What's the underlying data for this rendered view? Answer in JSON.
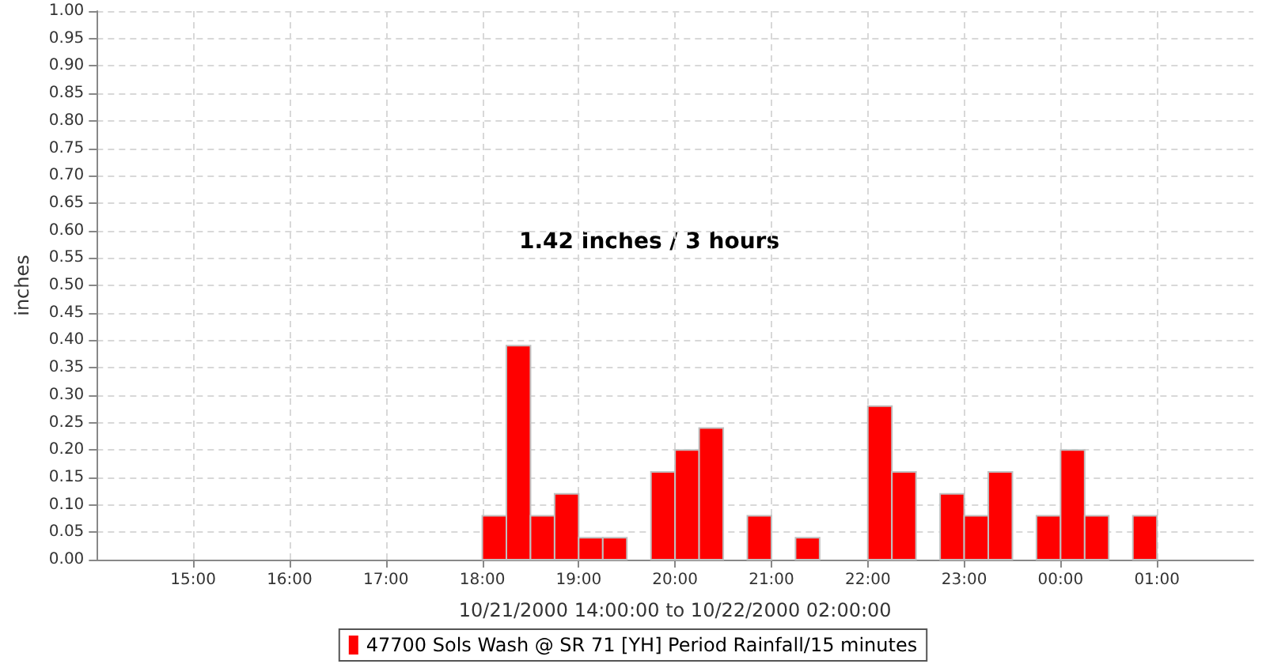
{
  "chart_data": {
    "type": "histogram",
    "xlabel": "10/21/2000 14:00:00 to 10/22/2000 02:00:00",
    "ylabel": "inches",
    "annotations": [
      "1.42 inches / 3 hours"
    ],
    "bins": [
      "2000-10-21T18:00",
      "2000-10-21T18:15",
      "2000-10-21T18:30",
      "2000-10-21T18:45",
      "2000-10-21T19:00",
      "2000-10-21T19:15",
      "2000-10-21T19:30",
      "2000-10-21T19:45",
      "2000-10-21T20:00",
      "2000-10-21T20:15",
      "2000-10-21T20:30",
      "2000-10-21T20:45",
      "2000-10-21T21:00",
      "2000-10-21T21:15",
      "2000-10-21T21:30",
      "2000-10-21T21:45",
      "2000-10-21T22:00",
      "2000-10-21T22:15",
      "2000-10-21T22:30",
      "2000-10-21T22:45",
      "2000-10-21T23:00",
      "2000-10-21T23:15",
      "2000-10-21T23:30",
      "2000-10-21T23:45",
      "2000-10-22T00:00",
      "2000-10-22T00:15",
      "2000-10-22T00:30",
      "2000-10-22T00:45",
      "2000-10-22T01:00"
    ],
    "series": [
      {
        "name": "47700 Sols Wash @ SR 71 [YH] Period Rainfall/15 minutes",
        "color": "#ff0000",
        "values": [
          0.08,
          0.39,
          0.08,
          0.12,
          0.04,
          0.04,
          0,
          0.16,
          0.2,
          0.24,
          0,
          0.08,
          0,
          0.04,
          0,
          0,
          0.28,
          0.16,
          0,
          0.12,
          0.08,
          0.16,
          0,
          0.08,
          0.2,
          0.08,
          0,
          0.08
        ]
      }
    ],
    "xlim": [
      "2000-10-21T14:00",
      "2000-10-22T02:00"
    ],
    "xticks": [
      {
        "value": "2000-10-21T15:00",
        "label": "15:00"
      },
      {
        "value": "2000-10-21T16:00",
        "label": "16:00"
      },
      {
        "value": "2000-10-21T17:00",
        "label": "17:00"
      },
      {
        "value": "2000-10-21T18:00",
        "label": "18:00"
      },
      {
        "value": "2000-10-21T19:00",
        "label": "19:00"
      },
      {
        "value": "2000-10-21T20:00",
        "label": "20:00"
      },
      {
        "value": "2000-10-21T21:00",
        "label": "21:00"
      },
      {
        "value": "2000-10-21T22:00",
        "label": "22:00"
      },
      {
        "value": "2000-10-21T23:00",
        "label": "23:00"
      },
      {
        "value": "2000-10-22T00:00",
        "label": "00:00"
      },
      {
        "value": "2000-10-22T01:00",
        "label": "01:00"
      }
    ],
    "ylim": [
      0,
      1
    ],
    "yticks": [
      {
        "value": 0,
        "label": "0.00"
      },
      {
        "value": 0.05,
        "label": "0.05"
      },
      {
        "value": 0.1,
        "label": "0.10"
      },
      {
        "value": 0.15,
        "label": "0.15"
      },
      {
        "value": 0.2,
        "label": "0.20"
      },
      {
        "value": 0.25,
        "label": "0.25"
      },
      {
        "value": 0.3,
        "label": "0.30"
      },
      {
        "value": 0.35,
        "label": "0.35"
      },
      {
        "value": 0.4,
        "label": "0.40"
      },
      {
        "value": 0.45,
        "label": "0.45"
      },
      {
        "value": 0.5,
        "label": "0.50"
      },
      {
        "value": 0.55,
        "label": "0.55"
      },
      {
        "value": 0.6,
        "label": "0.60"
      },
      {
        "value": 0.65,
        "label": "0.65"
      },
      {
        "value": 0.7,
        "label": "0.70"
      },
      {
        "value": 0.75,
        "label": "0.75"
      },
      {
        "value": 0.8,
        "label": "0.80"
      },
      {
        "value": 0.85,
        "label": "0.85"
      },
      {
        "value": 0.9,
        "label": "0.90"
      },
      {
        "value": 0.95,
        "label": "0.95"
      },
      {
        "value": 1,
        "label": "1.00"
      }
    ],
    "grid": true,
    "legend": "bottom"
  }
}
